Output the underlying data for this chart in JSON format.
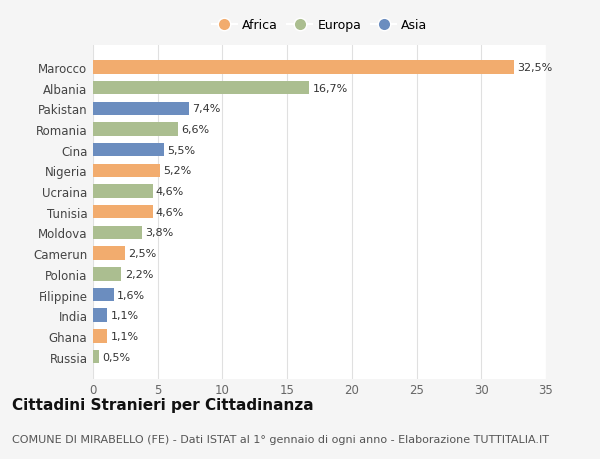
{
  "countries": [
    "Marocco",
    "Albania",
    "Pakistan",
    "Romania",
    "Cina",
    "Nigeria",
    "Ucraina",
    "Tunisia",
    "Moldova",
    "Camerun",
    "Polonia",
    "Filippine",
    "India",
    "Ghana",
    "Russia"
  ],
  "values": [
    32.5,
    16.7,
    7.4,
    6.6,
    5.5,
    5.2,
    4.6,
    4.6,
    3.8,
    2.5,
    2.2,
    1.6,
    1.1,
    1.1,
    0.5
  ],
  "labels": [
    "32,5%",
    "16,7%",
    "7,4%",
    "6,6%",
    "5,5%",
    "5,2%",
    "4,6%",
    "4,6%",
    "3,8%",
    "2,5%",
    "2,2%",
    "1,6%",
    "1,1%",
    "1,1%",
    "0,5%"
  ],
  "continents": [
    "Africa",
    "Europa",
    "Asia",
    "Europa",
    "Asia",
    "Africa",
    "Europa",
    "Africa",
    "Europa",
    "Africa",
    "Europa",
    "Asia",
    "Asia",
    "Africa",
    "Europa"
  ],
  "continent_colors": {
    "Africa": "#F2AC6E",
    "Europa": "#ABBE90",
    "Asia": "#6B8DBF"
  },
  "legend_order": [
    "Africa",
    "Europa",
    "Asia"
  ],
  "xlim": [
    0,
    35
  ],
  "xticks": [
    0,
    5,
    10,
    15,
    20,
    25,
    30,
    35
  ],
  "title": "Cittadini Stranieri per Cittadinanza",
  "subtitle": "COMUNE DI MIRABELLO (FE) - Dati ISTAT al 1° gennaio di ogni anno - Elaborazione TUTTITALIA.IT",
  "background_color": "#f5f5f5",
  "plot_background": "#ffffff",
  "grid_color": "#e0e0e0",
  "bar_height": 0.65,
  "title_fontsize": 11,
  "subtitle_fontsize": 8,
  "label_fontsize": 8,
  "tick_fontsize": 8.5,
  "legend_fontsize": 9
}
